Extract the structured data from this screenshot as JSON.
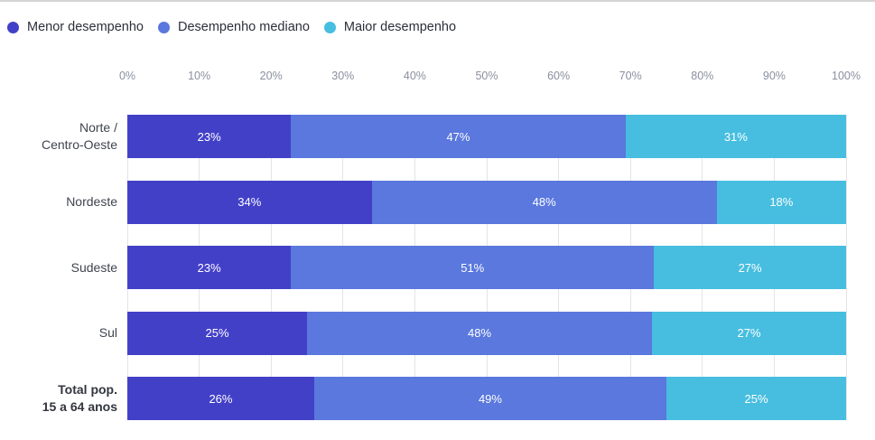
{
  "chart_data": {
    "type": "bar",
    "stacked": true,
    "orientation": "horizontal",
    "title": "",
    "legend_position": "top",
    "grid": true,
    "value_suffix": "%",
    "x_axis": {
      "min": 0,
      "max": 100,
      "ticks": [
        "0%",
        "10%",
        "20%",
        "30%",
        "40%",
        "50%",
        "60%",
        "70%",
        "80%",
        "90%",
        "100%"
      ]
    },
    "categories": [
      {
        "label": "Norte / Centro-Oeste",
        "lines": [
          "Norte /",
          "Centro-Oeste"
        ],
        "bold": false
      },
      {
        "label": "Nordeste",
        "lines": [
          "Nordeste"
        ],
        "bold": false
      },
      {
        "label": "Sudeste",
        "lines": [
          "Sudeste"
        ],
        "bold": false
      },
      {
        "label": "Sul",
        "lines": [
          "Sul"
        ],
        "bold": false
      },
      {
        "label": "Total pop. 15 a 64 anos",
        "lines": [
          "Total pop.",
          "15 a 64 anos"
        ],
        "bold": true
      }
    ],
    "series": [
      {
        "name": "Menor desempenho",
        "color": "#4340c8",
        "values": [
          23,
          34,
          23,
          25,
          26
        ]
      },
      {
        "name": "Desempenho mediano",
        "color": "#5a78dd",
        "values": [
          47,
          48,
          51,
          48,
          49
        ]
      },
      {
        "name": "Maior desempenho",
        "color": "#47bee0",
        "values": [
          31,
          18,
          27,
          27,
          25
        ]
      }
    ]
  }
}
